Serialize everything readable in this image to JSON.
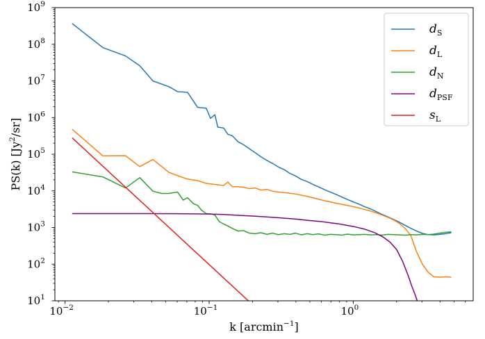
{
  "chart_data": {
    "type": "line",
    "xlabel": "k [arcmin",
    "xlabel_sup": "−1",
    "xlabel_suffix": "]",
    "ylabel": "PS(k) [Jy",
    "ylabel_sup": "2",
    "ylabel_suffix": "/sr]",
    "xscale": "log",
    "yscale": "log",
    "xlim": [
      0.0085,
      6.8
    ],
    "ylim": [
      10,
      1000000000
    ],
    "x_ticks": [
      {
        "value": 0.01,
        "base": "10",
        "exp": "−2"
      },
      {
        "value": 0.1,
        "base": "10",
        "exp": "−1"
      },
      {
        "value": 1,
        "base": "10",
        "exp": "0"
      }
    ],
    "y_ticks": [
      {
        "value": 10,
        "base": "10",
        "exp": "1"
      },
      {
        "value": 100,
        "base": "10",
        "exp": "2"
      },
      {
        "value": 1000,
        "base": "10",
        "exp": "3"
      },
      {
        "value": 10000,
        "base": "10",
        "exp": "4"
      },
      {
        "value": 100000,
        "base": "10",
        "exp": "5"
      },
      {
        "value": 1000000,
        "base": "10",
        "exp": "6"
      },
      {
        "value": 10000000,
        "base": "10",
        "exp": "7"
      },
      {
        "value": 100000000,
        "base": "10",
        "exp": "8"
      },
      {
        "value": 1000000000,
        "base": "10",
        "exp": "9"
      }
    ],
    "legend_position": "top-right",
    "series": [
      {
        "name": "d",
        "sub": "S",
        "color": "#1f77b4",
        "points": [
          [
            0.0112,
            370000000.0
          ],
          [
            0.0183,
            81000000.0
          ],
          [
            0.0263,
            48000000.0
          ],
          [
            0.033,
            26000000.0
          ],
          [
            0.0407,
            10000000.0
          ],
          [
            0.0525,
            7000000.0
          ],
          [
            0.0603,
            5100000.0
          ],
          [
            0.0708,
            4900000.0
          ],
          [
            0.0832,
            1900000.0
          ],
          [
            0.0955,
            1800000.0
          ],
          [
            0.1023,
            950000.0
          ],
          [
            0.1096,
            1200000.0
          ],
          [
            0.1148,
            550000.0
          ],
          [
            0.1259,
            520000.0
          ],
          [
            0.1349,
            350000.0
          ],
          [
            0.1445,
            320000.0
          ],
          [
            0.1585,
            220000.0
          ],
          [
            0.1738,
            180000.0
          ],
          [
            0.1905,
            140000.0
          ],
          [
            0.2089,
            110000.0
          ],
          [
            0.2291,
            85000.0
          ],
          [
            0.2512,
            68000.0
          ],
          [
            0.2754,
            56000.0
          ],
          [
            0.302,
            45000.0
          ],
          [
            0.3311,
            38000.0
          ],
          [
            0.3631,
            30000.0
          ],
          [
            0.3981,
            25500.0
          ],
          [
            0.4365,
            20500.0
          ],
          [
            0.4786,
            18000.0
          ],
          [
            0.5248,
            15000.0
          ],
          [
            0.5754,
            12800.0
          ],
          [
            0.631,
            10800.0
          ],
          [
            0.6918,
            9300.0
          ],
          [
            0.7586,
            8000.0
          ],
          [
            0.8318,
            6800.0
          ],
          [
            0.912,
            5800.0
          ],
          [
            1.0,
            5000.0
          ],
          [
            1.1,
            4300.0
          ],
          [
            1.2,
            3700.0
          ],
          [
            1.32,
            3200.0
          ],
          [
            1.45,
            2700.0
          ],
          [
            1.58,
            2300.0
          ],
          [
            1.74,
            1950.0
          ],
          [
            1.91,
            1650.0
          ],
          [
            2.09,
            1400.0
          ],
          [
            2.29,
            1150.0
          ],
          [
            2.51,
            950
          ],
          [
            2.75,
            800
          ],
          [
            3.02,
            690
          ],
          [
            3.31,
            640
          ],
          [
            3.63,
            630
          ],
          [
            3.98,
            650
          ],
          [
            4.37,
            680
          ],
          [
            4.79,
            720
          ]
        ]
      },
      {
        "name": "d",
        "sub": "L",
        "color": "#ff7f0e",
        "points": [
          [
            0.0112,
            480000.0
          ],
          [
            0.0183,
            90000.0
          ],
          [
            0.0263,
            91000.0
          ],
          [
            0.033,
            46000.0
          ],
          [
            0.0407,
            72000.0
          ],
          [
            0.0525,
            32000.0
          ],
          [
            0.0603,
            26000.0
          ],
          [
            0.0708,
            21000.0
          ],
          [
            0.0832,
            19000.0
          ],
          [
            0.0955,
            16000.0
          ],
          [
            0.1096,
            15000.0
          ],
          [
            0.1259,
            14000.0
          ],
          [
            0.1349,
            17500.0
          ],
          [
            0.1445,
            13000.0
          ],
          [
            0.1585,
            13000.0
          ],
          [
            0.1738,
            12500.0
          ],
          [
            0.1905,
            11500.0
          ],
          [
            0.2089,
            12000.0
          ],
          [
            0.2291,
            10500.0
          ],
          [
            0.2512,
            11000.0
          ],
          [
            0.2754,
            9800.0
          ],
          [
            0.302,
            9300.0
          ],
          [
            0.3311,
            9000.0
          ],
          [
            0.3631,
            8600.0
          ],
          [
            0.3981,
            8200.0
          ],
          [
            0.4365,
            7600.0
          ],
          [
            0.4786,
            7100.0
          ],
          [
            0.5248,
            6500.0
          ],
          [
            0.5754,
            5900.0
          ],
          [
            0.631,
            5400.0
          ],
          [
            0.6918,
            5000.0
          ],
          [
            0.7586,
            4600.0
          ],
          [
            0.8318,
            4300.0
          ],
          [
            0.912,
            4000.0
          ],
          [
            1.0,
            3700.0
          ],
          [
            1.1,
            3400.0
          ],
          [
            1.2,
            3100.0
          ],
          [
            1.32,
            2800.0
          ],
          [
            1.45,
            2500.0
          ],
          [
            1.58,
            2200.0
          ],
          [
            1.74,
            1900.0
          ],
          [
            1.91,
            1600.0
          ],
          [
            2.09,
            1300.0
          ],
          [
            2.29,
            950
          ],
          [
            2.51,
            600
          ],
          [
            2.75,
            220
          ],
          [
            3.02,
            100
          ],
          [
            3.31,
            60
          ],
          [
            3.63,
            45
          ],
          [
            3.98,
            44
          ],
          [
            4.37,
            45
          ],
          [
            4.79,
            44
          ]
        ]
      },
      {
        "name": "d",
        "sub": "N",
        "color": "#2ca02c",
        "points": [
          [
            0.0112,
            33000.0
          ],
          [
            0.0183,
            24000.0
          ],
          [
            0.0263,
            12000.0
          ],
          [
            0.033,
            23000.0
          ],
          [
            0.0407,
            9800.0
          ],
          [
            0.0467,
            8500.0
          ],
          [
            0.0525,
            8500.0
          ],
          [
            0.0603,
            9300.0
          ],
          [
            0.0661,
            5600.0
          ],
          [
            0.0708,
            6500.0
          ],
          [
            0.0776,
            4500.0
          ],
          [
            0.0832,
            4000.0
          ],
          [
            0.0891,
            2900.0
          ],
          [
            0.0955,
            2400.0
          ],
          [
            0.1023,
            2350.0
          ],
          [
            0.1096,
            2200.0
          ],
          [
            0.1175,
            1450.0
          ],
          [
            0.1259,
            1250.0
          ],
          [
            0.1349,
            1100.0
          ],
          [
            0.1445,
            950
          ],
          [
            0.1585,
            800
          ],
          [
            0.1738,
            820
          ],
          [
            0.1905,
            700
          ],
          [
            0.2089,
            680
          ],
          [
            0.2291,
            720
          ],
          [
            0.2512,
            650
          ],
          [
            0.2754,
            700
          ],
          [
            0.302,
            640
          ],
          [
            0.3311,
            680
          ],
          [
            0.3631,
            650
          ],
          [
            0.3981,
            700
          ],
          [
            0.4365,
            630
          ],
          [
            0.4786,
            680
          ],
          [
            0.5248,
            640
          ],
          [
            0.5754,
            670
          ],
          [
            0.631,
            620
          ],
          [
            0.6918,
            650
          ],
          [
            0.7586,
            640
          ],
          [
            0.8318,
            620
          ],
          [
            0.912,
            660
          ],
          [
            1.0,
            630
          ],
          [
            1.1,
            640
          ],
          [
            1.2,
            650
          ],
          [
            1.32,
            630
          ],
          [
            1.45,
            640
          ],
          [
            1.58,
            620
          ],
          [
            1.74,
            650
          ],
          [
            1.91,
            640
          ],
          [
            2.09,
            630
          ],
          [
            2.29,
            620
          ],
          [
            2.51,
            640
          ],
          [
            2.75,
            630
          ],
          [
            3.02,
            650
          ],
          [
            3.31,
            640
          ],
          [
            3.63,
            660
          ],
          [
            3.98,
            700
          ],
          [
            4.37,
            740
          ],
          [
            4.79,
            760
          ]
        ]
      },
      {
        "name": "d",
        "sub": "PSF",
        "color": "#800080",
        "points": [
          [
            0.0112,
            2400
          ],
          [
            0.02,
            2400
          ],
          [
            0.04,
            2400
          ],
          [
            0.06,
            2380
          ],
          [
            0.08,
            2360
          ],
          [
            0.1,
            2330
          ],
          [
            0.13,
            2250
          ],
          [
            0.16,
            2150
          ],
          [
            0.2,
            2050
          ],
          [
            0.25,
            1950
          ],
          [
            0.3,
            1850
          ],
          [
            0.4,
            1700
          ],
          [
            0.5,
            1550
          ],
          [
            0.6,
            1450
          ],
          [
            0.8,
            1250
          ],
          [
            1.0,
            1070
          ],
          [
            1.2,
            900
          ],
          [
            1.4,
            730
          ],
          [
            1.6,
            560
          ],
          [
            1.8,
            400
          ],
          [
            2.0,
            250
          ],
          [
            2.2,
            120
          ],
          [
            2.4,
            50
          ],
          [
            2.55,
            25
          ],
          [
            2.7,
            14
          ],
          [
            2.78,
            10
          ]
        ]
      },
      {
        "name": "s",
        "sub": "L",
        "color": "#e41a1c",
        "points": [
          [
            0.0112,
            280000.0
          ],
          [
            0.187,
            10
          ]
        ]
      }
    ]
  }
}
